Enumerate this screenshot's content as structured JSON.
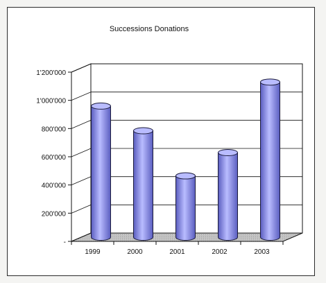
{
  "chart_data": {
    "type": "bar",
    "title": "Successions Donations",
    "xlabel": "",
    "ylabel": "",
    "categories": [
      "1999",
      "2000",
      "2001",
      "2002",
      "2003"
    ],
    "values": [
      930000,
      755000,
      435000,
      600000,
      1100000
    ],
    "ylim": [
      0,
      1200000
    ],
    "yticks": [
      {
        "value": 0,
        "label": "-"
      },
      {
        "value": 200000,
        "label": "200'000"
      },
      {
        "value": 400000,
        "label": "400'000"
      },
      {
        "value": 600000,
        "label": "600'000"
      },
      {
        "value": 800000,
        "label": "800'000"
      },
      {
        "value": 1000000,
        "label": "1'000'000"
      },
      {
        "value": 1200000,
        "label": "1'200'000"
      }
    ],
    "grid": true,
    "legend": "none",
    "style": "3d-cylinder",
    "colors": {
      "bar": "#8f92ee",
      "bar_light": "#b9bcff",
      "bar_dark": "#5a5dbf",
      "floor": "#c8c8c8"
    }
  }
}
